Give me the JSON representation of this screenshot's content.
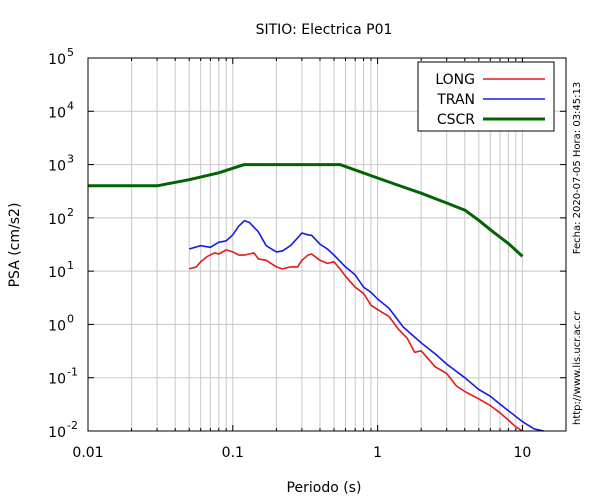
{
  "chart_data": {
    "type": "line",
    "title": "SITIO: Electrica P01",
    "xlabel": "Periodo (s)",
    "ylabel": "PSA (cm/s2)",
    "x_scale": "log",
    "y_scale": "log",
    "xlim": [
      0.01,
      20
    ],
    "ylim": [
      0.01,
      100000
    ],
    "x_ticks": [
      {
        "value": 0.01,
        "label": "0.01"
      },
      {
        "value": 0.1,
        "label": "0.1"
      },
      {
        "value": 1,
        "label": "1"
      },
      {
        "value": 10,
        "label": "10"
      }
    ],
    "y_ticks": [
      {
        "value": 0.01,
        "base": "10",
        "exp": "-2"
      },
      {
        "value": 0.1,
        "base": "10",
        "exp": "-1"
      },
      {
        "value": 1,
        "base": "10",
        "exp": "0"
      },
      {
        "value": 10,
        "base": "10",
        "exp": "1"
      },
      {
        "value": 100,
        "base": "10",
        "exp": "2"
      },
      {
        "value": 1000,
        "base": "10",
        "exp": "3"
      },
      {
        "value": 10000,
        "base": "10",
        "exp": "4"
      },
      {
        "value": 100000,
        "base": "10",
        "exp": "5"
      }
    ],
    "grid": true,
    "legend_position": "top-right",
    "series": [
      {
        "name": "LONG",
        "color": "#e41a1c",
        "points": [
          [
            0.05,
            11
          ],
          [
            0.056,
            12
          ],
          [
            0.06,
            15
          ],
          [
            0.067,
            19
          ],
          [
            0.075,
            22
          ],
          [
            0.08,
            21
          ],
          [
            0.09,
            25
          ],
          [
            0.1,
            23
          ],
          [
            0.11,
            20
          ],
          [
            0.12,
            20
          ],
          [
            0.13,
            21
          ],
          [
            0.14,
            22
          ],
          [
            0.15,
            17
          ],
          [
            0.17,
            16
          ],
          [
            0.2,
            12
          ],
          [
            0.22,
            11
          ],
          [
            0.25,
            12
          ],
          [
            0.28,
            12
          ],
          [
            0.3,
            16
          ],
          [
            0.33,
            20
          ],
          [
            0.35,
            21
          ],
          [
            0.4,
            16
          ],
          [
            0.45,
            14
          ],
          [
            0.5,
            15
          ],
          [
            0.55,
            11
          ],
          [
            0.6,
            8
          ],
          [
            0.7,
            5
          ],
          [
            0.8,
            3.8
          ],
          [
            0.9,
            2.3
          ],
          [
            1.0,
            1.9
          ],
          [
            1.2,
            1.4
          ],
          [
            1.4,
            0.8
          ],
          [
            1.6,
            0.55
          ],
          [
            1.8,
            0.3
          ],
          [
            2.0,
            0.32
          ],
          [
            2.5,
            0.16
          ],
          [
            3.0,
            0.12
          ],
          [
            3.5,
            0.07
          ],
          [
            4.0,
            0.055
          ],
          [
            5.0,
            0.04
          ],
          [
            6.0,
            0.03
          ],
          [
            7.0,
            0.022
          ],
          [
            8.0,
            0.016
          ],
          [
            9.0,
            0.012
          ],
          [
            10.0,
            0.01
          ]
        ]
      },
      {
        "name": "TRAN",
        "color": "#1a1ae4",
        "points": [
          [
            0.05,
            26
          ],
          [
            0.06,
            30
          ],
          [
            0.07,
            28
          ],
          [
            0.08,
            35
          ],
          [
            0.09,
            37
          ],
          [
            0.1,
            48
          ],
          [
            0.11,
            70
          ],
          [
            0.12,
            88
          ],
          [
            0.13,
            82
          ],
          [
            0.15,
            55
          ],
          [
            0.17,
            30
          ],
          [
            0.2,
            23
          ],
          [
            0.22,
            24
          ],
          [
            0.25,
            30
          ],
          [
            0.28,
            42
          ],
          [
            0.3,
            52
          ],
          [
            0.33,
            48
          ],
          [
            0.35,
            47
          ],
          [
            0.4,
            32
          ],
          [
            0.45,
            26
          ],
          [
            0.5,
            20
          ],
          [
            0.6,
            12
          ],
          [
            0.7,
            8.5
          ],
          [
            0.8,
            5
          ],
          [
            0.9,
            4
          ],
          [
            1.0,
            3
          ],
          [
            1.2,
            2
          ],
          [
            1.5,
            0.9
          ],
          [
            2.0,
            0.45
          ],
          [
            2.5,
            0.28
          ],
          [
            3.0,
            0.18
          ],
          [
            4.0,
            0.1
          ],
          [
            5.0,
            0.06
          ],
          [
            6.0,
            0.045
          ],
          [
            7.0,
            0.032
          ],
          [
            8.0,
            0.024
          ],
          [
            10.0,
            0.015
          ],
          [
            12.0,
            0.011
          ],
          [
            14.0,
            0.01
          ]
        ]
      },
      {
        "name": "CSCR",
        "color": "#006400",
        "points": [
          [
            0.01,
            400
          ],
          [
            0.03,
            400
          ],
          [
            0.05,
            520
          ],
          [
            0.08,
            700
          ],
          [
            0.12,
            1000
          ],
          [
            0.55,
            1000
          ],
          [
            1.0,
            560
          ],
          [
            1.5,
            380
          ],
          [
            2.0,
            290
          ],
          [
            2.5,
            230
          ],
          [
            3.0,
            190
          ],
          [
            4.0,
            140
          ],
          [
            5.0,
            90
          ],
          [
            6.0,
            60
          ],
          [
            8.0,
            33
          ],
          [
            10.0,
            19
          ]
        ]
      }
    ]
  },
  "annotations": {
    "timestamp": "Fecha: 2020-07-05  Hora: 03:45:13",
    "url": "http://www.lis.ucr.ac.cr"
  }
}
